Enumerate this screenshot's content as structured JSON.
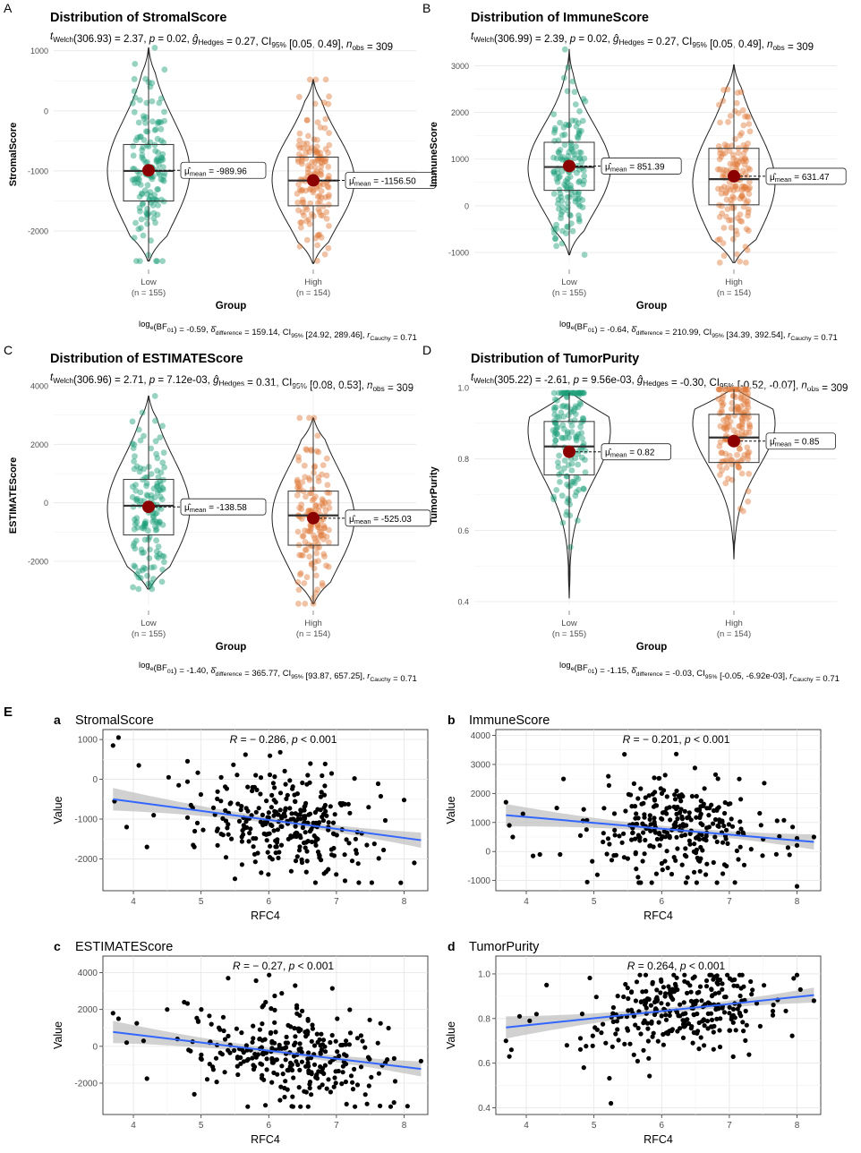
{
  "panel_letters": {
    "A": "A",
    "B": "B",
    "C": "C",
    "D": "D",
    "E": "E"
  },
  "colors": {
    "low": "#1b9e77",
    "high": "#e07b39",
    "mean": "#8b0000",
    "reg": "#3366ff",
    "band": "#bdbdbd"
  },
  "chart_data": [
    {
      "id": "A",
      "type": "violin",
      "title": "Distribution of StromalScore",
      "stat_top": "t_Welch(306.93) = 2.37, p = 0.02, g_Hedges = 0.27, CI95% [0.05, 0.49], n_obs = 309",
      "stat_bottom": "log_e(BF01) = -0.59, δ_difference^posterior = 159.14, CI95%^ETI [24.92, 289.46], r_Cauchy^JZS = 0.71",
      "ylabel": "StromalScore",
      "xlabel": "Group",
      "ylim": [
        -2550,
        1100
      ],
      "yticks": [
        -2000,
        -1000,
        0,
        1000
      ],
      "groups": [
        {
          "name": "Low",
          "n_label": "(n = 155)",
          "min": -2500,
          "q1": -1500,
          "median": -1000,
          "q3": -560,
          "max": 1050,
          "mean": -989.96,
          "mean_label": "μmean = -989.96",
          "violin_mode": -1000
        },
        {
          "name": "High",
          "n_label": "(n = 154)",
          "min": -2540,
          "q1": -1580,
          "median": -1160,
          "q3": -770,
          "max": 520,
          "mean": -1156.5,
          "mean_label": "μmean = -1156.50",
          "violin_mode": -1150
        }
      ]
    },
    {
      "id": "B",
      "type": "violin",
      "title": "Distribution of ImmuneScore",
      "stat_top": "t_Welch(306.99) = 2.39, p = 0.02, g_Hedges = 0.27, CI95% [0.05, 0.49], n_obs = 309",
      "stat_bottom": "log_e(BF01) = -0.64, δ_difference^posterior = 210.99, CI95%^ETI [34.39, 392.54], r_Cauchy^JZS = 0.71",
      "ylabel": "ImmuneScore",
      "xlabel": "Group",
      "ylim": [
        -1250,
        3450
      ],
      "yticks": [
        -1000,
        0,
        1000,
        2000,
        3000
      ],
      "groups": [
        {
          "name": "Low",
          "n_label": "(n = 155)",
          "min": -1050,
          "q1": 330,
          "median": 830,
          "q3": 1360,
          "max": 3350,
          "mean": 851.39,
          "mean_label": "μmean = 851.39",
          "violin_mode": 800
        },
        {
          "name": "High",
          "n_label": "(n = 154)",
          "min": -1220,
          "q1": 20,
          "median": 570,
          "q3": 1230,
          "max": 3020,
          "mean": 631.47,
          "mean_label": "μmean = 631.47",
          "violin_mode": 500
        }
      ]
    },
    {
      "id": "C",
      "type": "violin",
      "title": "Distribution of ESTIMATEScore",
      "stat_top": "t_Welch(306.96) = 2.71, p = 7.12e-03, g_Hedges = 0.31, CI95% [0.08, 0.53], n_obs = 309",
      "stat_bottom": "log_e(BF01) = -1.40, δ_difference^posterior = 365.77, CI95%^ETI [93.87, 657.25], r_Cauchy^JZS = 0.71",
      "ylabel": "ESTIMATEScore",
      "xlabel": "Group",
      "ylim": [
        -3500,
        4000
      ],
      "yticks": [
        -2000,
        0,
        2000,
        4000
      ],
      "groups": [
        {
          "name": "Low",
          "n_label": "(n = 155)",
          "min": -2950,
          "q1": -1100,
          "median": -100,
          "q3": 800,
          "max": 3650,
          "mean": -138.58,
          "mean_label": "μmean = -138.58",
          "violin_mode": -200
        },
        {
          "name": "High",
          "n_label": "(n = 154)",
          "min": -3450,
          "q1": -1450,
          "median": -430,
          "q3": 400,
          "max": 2900,
          "mean": -525.03,
          "mean_label": "μmean = -525.03",
          "violin_mode": -500
        }
      ]
    },
    {
      "id": "D",
      "type": "violin",
      "title": "Distribution of TumorPurity",
      "stat_top": "t_Welch(305.22) = -2.61, p = 9.56e-03, g_Hedges = -0.30, CI95% [-0.52, -0.07], n_obs = 309",
      "stat_bottom": "log_e(BF01) = -1.15, δ_difference^posterior = -0.03, CI95%^ETI [-0.05, -6.92e-03], r_Cauchy^JZS = 0.71",
      "ylabel": "TumorPurity",
      "xlabel": "Group",
      "ylim": [
        0.39,
        1.005
      ],
      "yticks": [
        0.4,
        0.6,
        0.8,
        1.0
      ],
      "groups": [
        {
          "name": "Low",
          "n_label": "(n = 155)",
          "min": 0.41,
          "q1": 0.755,
          "median": 0.835,
          "q3": 0.905,
          "max": 0.985,
          "mean": 0.82,
          "mean_label": "μmean = 0.82",
          "violin_mode": 0.88
        },
        {
          "name": "High",
          "n_label": "(n = 154)",
          "min": 0.52,
          "q1": 0.79,
          "median": 0.86,
          "q3": 0.925,
          "max": 0.995,
          "mean": 0.85,
          "mean_label": "μmean = 0.85",
          "violin_mode": 0.9
        }
      ]
    },
    {
      "id": "a",
      "type": "scatter",
      "title": "StromalScore",
      "annotation": "R = − 0.286, p < 0.001",
      "xlabel": "RFC4",
      "ylabel": "Value",
      "xlim": [
        3.55,
        8.35
      ],
      "ylim": [
        -2800,
        1250
      ],
      "xticks": [
        4,
        5,
        6,
        7,
        8
      ],
      "yticks": [
        -2000,
        -1000,
        0,
        1000
      ],
      "fit": {
        "x0": 3.7,
        "y0": -500,
        "x1": 8.25,
        "y1": -1530
      },
      "cloud": {
        "xmean": 6.3,
        "xsd": 0.65,
        "ymean": -1050,
        "ysd": 680,
        "slope": -220
      },
      "outliers": [
        [
          3.7,
          850
        ],
        [
          3.78,
          1050
        ],
        [
          3.72,
          -550
        ],
        [
          3.9,
          -1200
        ],
        [
          4.08,
          350
        ],
        [
          4.2,
          -1700
        ],
        [
          4.3,
          -900
        ],
        [
          4.52,
          50
        ],
        [
          4.67,
          -150
        ],
        [
          4.9,
          -1700
        ],
        [
          4.85,
          -650
        ],
        [
          5.5,
          -2500
        ],
        [
          7.95,
          -2600
        ],
        [
          8.15,
          -2100
        ]
      ]
    },
    {
      "id": "b",
      "type": "scatter",
      "title": "ImmuneScore",
      "annotation": "R = − 0.201, p < 0.001",
      "xlabel": "RFC4",
      "ylabel": "Value",
      "xlim": [
        3.55,
        8.35
      ],
      "ylim": [
        -1350,
        4200
      ],
      "xticks": [
        4,
        5,
        6,
        7,
        8
      ],
      "yticks": [
        -1000,
        0,
        1000,
        2000,
        3000,
        4000
      ],
      "fit": {
        "x0": 3.7,
        "y0": 1250,
        "x1": 8.25,
        "y1": 330
      },
      "cloud": {
        "xmean": 6.3,
        "xsd": 0.65,
        "ymean": 750,
        "ysd": 850,
        "slope": -200
      },
      "outliers": [
        [
          3.7,
          1700
        ],
        [
          3.75,
          900
        ],
        [
          3.8,
          500
        ],
        [
          3.95,
          1300
        ],
        [
          4.1,
          -150
        ],
        [
          4.2,
          -100
        ],
        [
          4.45,
          1500
        ],
        [
          4.5,
          -100
        ],
        [
          4.55,
          2500
        ],
        [
          4.9,
          -1050
        ],
        [
          5.05,
          -800
        ],
        [
          5.45,
          3350
        ],
        [
          8.0,
          -1200
        ],
        [
          8.25,
          500
        ]
      ]
    },
    {
      "id": "c",
      "type": "scatter",
      "title": "ESTIMATEScore",
      "annotation": "R = − 0.27, p < 0.001",
      "xlabel": "RFC4",
      "ylabel": "Value",
      "xlim": [
        3.55,
        8.35
      ],
      "ylim": [
        -3700,
        4900
      ],
      "xticks": [
        4,
        5,
        6,
        7,
        8
      ],
      "yticks": [
        -2000,
        0,
        2000,
        4000
      ],
      "fit": {
        "x0": 3.7,
        "y0": 780,
        "x1": 8.25,
        "y1": -1230
      },
      "cloud": {
        "xmean": 6.3,
        "xsd": 0.65,
        "ymean": -300,
        "ysd": 1350,
        "slope": -430
      },
      "outliers": [
        [
          3.7,
          1800
        ],
        [
          3.78,
          1500
        ],
        [
          3.9,
          200
        ],
        [
          4.05,
          1250
        ],
        [
          4.15,
          300
        ],
        [
          4.2,
          -1750
        ],
        [
          4.5,
          2000
        ],
        [
          4.65,
          400
        ],
        [
          4.75,
          2400
        ],
        [
          4.9,
          -2600
        ],
        [
          5.4,
          3700
        ],
        [
          8.05,
          -3250
        ],
        [
          8.25,
          -800
        ],
        [
          7.85,
          -3050
        ]
      ]
    },
    {
      "id": "d",
      "type": "scatter",
      "title": "TumorPurity",
      "annotation": "R = 0.264, p < 0.001",
      "xlabel": "RFC4",
      "ylabel": "Value",
      "xlim": [
        3.55,
        8.35
      ],
      "ylim": [
        0.37,
        1.08
      ],
      "xticks": [
        4,
        5,
        6,
        7,
        8
      ],
      "yticks": [
        0.4,
        0.6,
        0.8,
        1.0
      ],
      "fit": {
        "x0": 3.7,
        "y0": 0.76,
        "x1": 8.25,
        "y1": 0.905
      },
      "cloud": {
        "xmean": 6.3,
        "xsd": 0.65,
        "ymean": 0.83,
        "ysd": 0.1,
        "slope": 0.032
      },
      "outliers": [
        [
          3.7,
          0.7
        ],
        [
          3.78,
          0.66
        ],
        [
          3.75,
          0.63
        ],
        [
          3.9,
          0.81
        ],
        [
          4.05,
          0.79
        ],
        [
          4.15,
          0.82
        ],
        [
          4.3,
          0.95
        ],
        [
          4.6,
          0.68
        ],
        [
          4.85,
          0.58
        ],
        [
          5.05,
          0.75
        ],
        [
          5.25,
          0.42
        ],
        [
          8.05,
          0.93
        ],
        [
          8.25,
          0.88
        ],
        [
          7.95,
          0.98
        ]
      ]
    }
  ]
}
